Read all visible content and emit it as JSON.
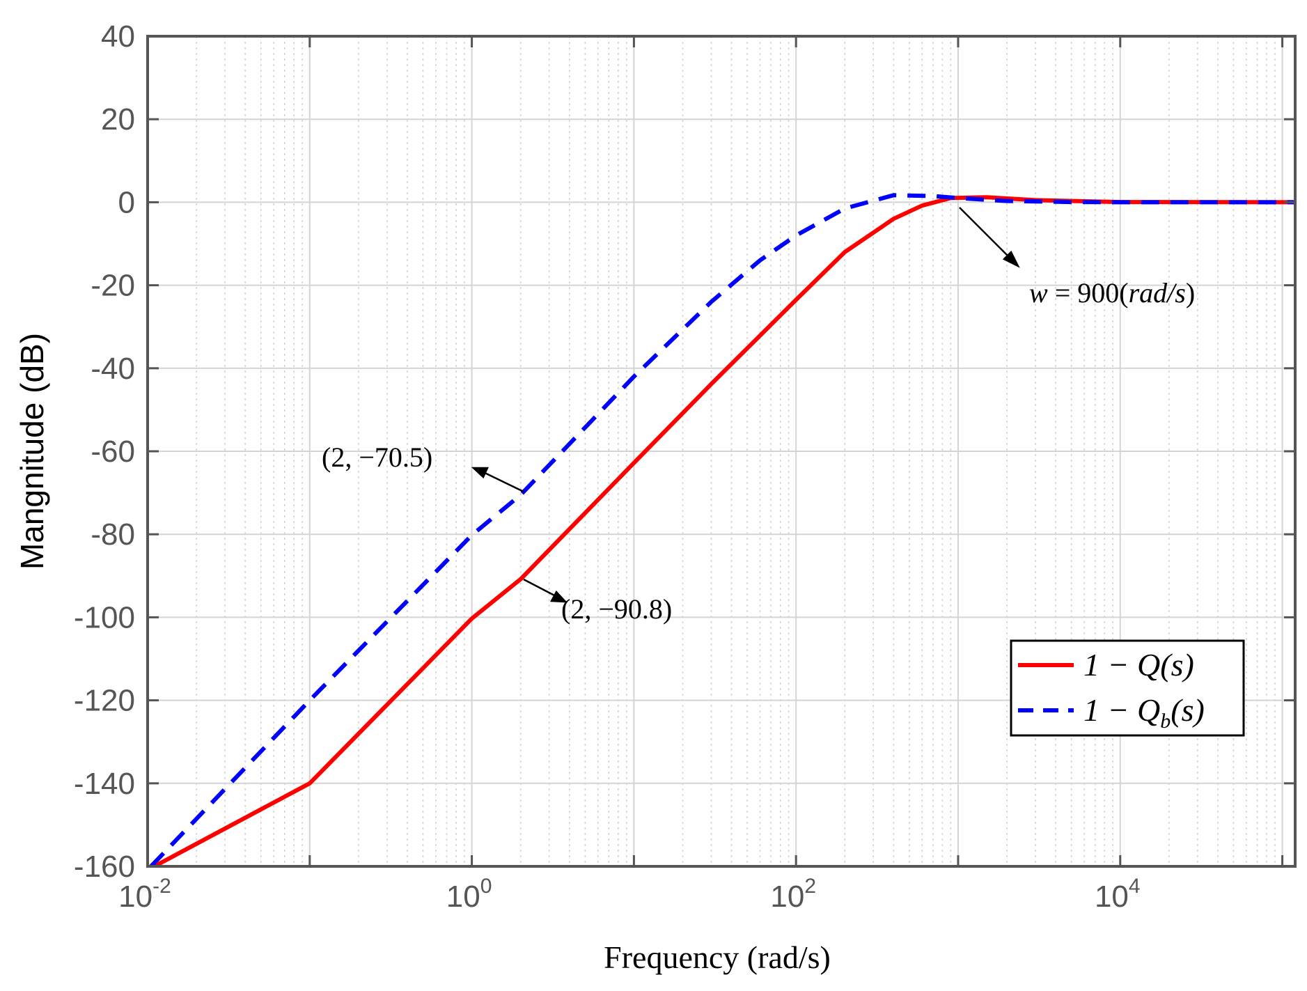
{
  "chart_data": {
    "type": "line",
    "xscale": "log",
    "xlabel": "Frequency  (rad/s)",
    "ylabel": "Mangnitude (dB)",
    "xlim": [
      0.01,
      120000
    ],
    "ylim": [
      -160,
      40
    ],
    "yticks": [
      40,
      20,
      0,
      -20,
      -40,
      -60,
      -80,
      -100,
      -120,
      -140,
      -160
    ],
    "ytick_labels": [
      "40",
      "20",
      "0",
      "-20",
      "-40",
      "-60",
      "-80",
      "-100",
      "-120",
      "-140",
      "-160"
    ],
    "xticks": [
      {
        "value": 0.01,
        "base": "10",
        "exp": "-2"
      },
      {
        "value": 1,
        "base": "10",
        "exp": "0"
      },
      {
        "value": 100,
        "base": "10",
        "exp": "2"
      },
      {
        "value": 10000,
        "base": "10",
        "exp": "4"
      }
    ],
    "grid": true,
    "legend_position": "bottom-right",
    "series": [
      {
        "name": "1 − Q(s)",
        "color": "#ff0000",
        "style": "solid",
        "x": [
          0.011,
          0.1,
          1,
          2,
          10,
          30,
          100,
          200,
          400,
          600,
          900,
          1500,
          3000,
          10000,
          120000
        ],
        "y": [
          -160,
          -140,
          -100.3,
          -90.8,
          -62.8,
          -43.8,
          -23.5,
          -12,
          -4,
          -0.8,
          1.0,
          1.2,
          0.5,
          0.05,
          0
        ]
      },
      {
        "name": "1 − Q_b(s)",
        "color": "#0000ff",
        "style": "dashed",
        "x": [
          0.0105,
          0.1,
          1,
          2,
          10,
          30,
          60,
          100,
          200,
          400,
          700,
          1000,
          2000,
          5000,
          10000,
          120000
        ],
        "y": [
          -160,
          -120,
          -80.2,
          -70.5,
          -42,
          -24,
          -14,
          -8,
          -1.5,
          1.7,
          1.5,
          1.0,
          0.3,
          0.05,
          0,
          0
        ]
      }
    ],
    "annotations": [
      {
        "text": "(2, −70.5)",
        "x": 2,
        "y": -70.5
      },
      {
        "text": "(2, −90.8)",
        "x": 2,
        "y": -90.8
      },
      {
        "text": "w = 900(rad/s)",
        "x": 900,
        "y": 0
      }
    ]
  },
  "legend": {
    "label_red": "1 − Q(s)",
    "label_blue_main": "1 − Q",
    "label_blue_sub": "b",
    "label_blue_tail": "(s)"
  },
  "annotation_text": {
    "a1": "(2, −70.5)",
    "a2": "(2, −90.8)",
    "a3_var": "w",
    "a3_rest": " = 900(",
    "a3_unit": "rad/s",
    "a3_close": ")"
  }
}
